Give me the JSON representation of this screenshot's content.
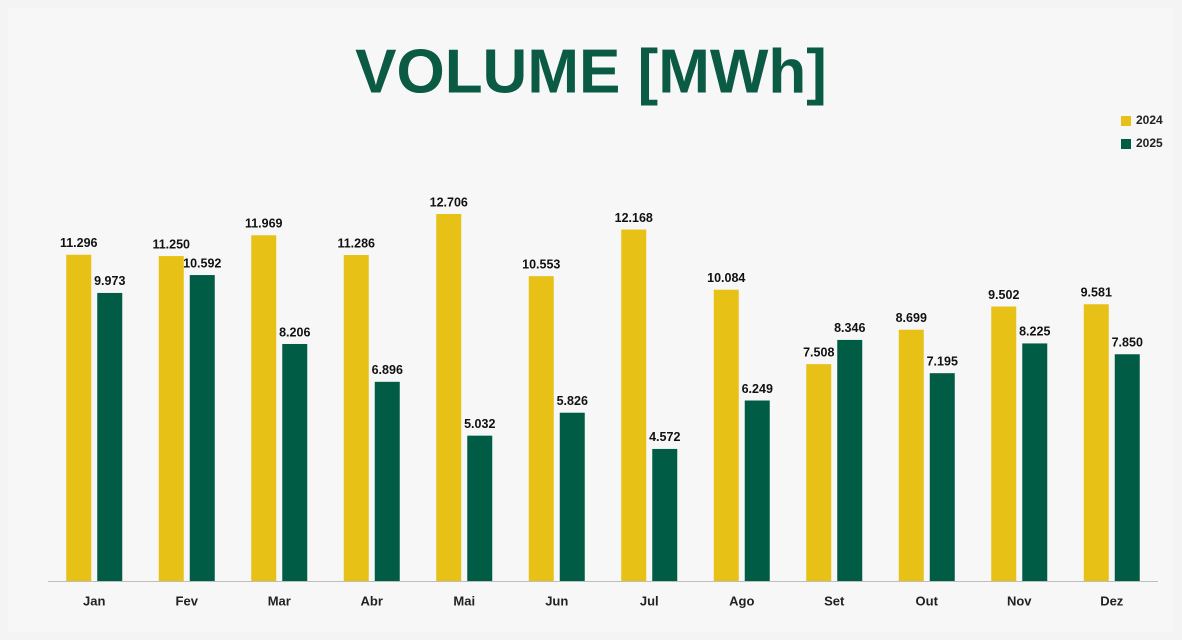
{
  "chart_data": {
    "type": "bar",
    "title": "VOLUME [MWh]",
    "categories": [
      "Jan",
      "Fev",
      "Mar",
      "Abr",
      "Mai",
      "Jun",
      "Jul",
      "Ago",
      "Set",
      "Out",
      "Nov",
      "Dez"
    ],
    "series": [
      {
        "name": "2024",
        "color": "#e8c116",
        "values": [
          11296,
          11250,
          11969,
          11286,
          12706,
          10553,
          12168,
          10084,
          7508,
          8699,
          9502,
          9581
        ],
        "value_labels": [
          "11.296",
          "11.250",
          "11.969",
          "11.286",
          "12.706",
          "10.553",
          "12.168",
          "10.084",
          "7.508",
          "8.699",
          "9.502",
          "9.581"
        ]
      },
      {
        "name": "2025",
        "color": "#005c45",
        "values": [
          9973,
          10592,
          8206,
          6896,
          5032,
          5826,
          4572,
          6249,
          8346,
          7195,
          8225,
          7850
        ],
        "value_labels": [
          "9.973",
          "10.592",
          "8.206",
          "6.896",
          "5.032",
          "5.826",
          "4.572",
          "6.249",
          "8.346",
          "7.195",
          "8.225",
          "7.850"
        ]
      }
    ],
    "legend": "top-right"
  }
}
